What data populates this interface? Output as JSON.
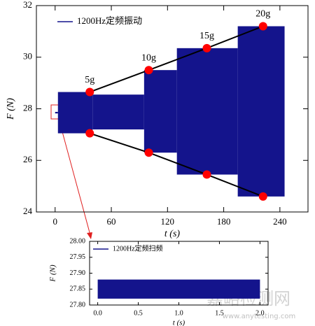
{
  "chart_data": [
    {
      "type": "band",
      "xlabel": "t (s)",
      "ylabel": "F (N)",
      "xlim": [
        -20,
        270
      ],
      "ylim": [
        24,
        32
      ],
      "xticks": [
        0,
        60,
        120,
        180,
        240
      ],
      "yticks": [
        24,
        26,
        28,
        30,
        32
      ],
      "series": [
        {
          "name": "1200Hz定频振动",
          "color": "#14148c",
          "x_start": [
            0,
            3,
            40,
            95,
            130,
            195
          ],
          "x_end": [
            3,
            40,
            95,
            130,
            195,
            245
          ],
          "low": [
            27.82,
            27.05,
            27.2,
            26.3,
            25.45,
            24.6
          ],
          "high": [
            27.88,
            28.65,
            28.55,
            29.5,
            30.35,
            31.2
          ]
        }
      ],
      "marker_color": "#ff0000",
      "line_color": "#000000",
      "envelope": [
        {
          "x": [
            37,
            100,
            162,
            222
          ],
          "values": [
            28.65,
            29.5,
            30.35,
            31.2
          ],
          "labels": [
            "5g",
            "10g",
            "15g",
            "20g"
          ]
        },
        {
          "x": [
            37,
            100,
            162,
            222
          ],
          "values": [
            27.05,
            26.3,
            25.45,
            24.6
          ]
        }
      ]
    },
    {
      "type": "band",
      "xlabel": "t (s)",
      "ylabel": "F (N)",
      "xlim": [
        -0.1,
        2.1
      ],
      "ylim": [
        27.8,
        28.0
      ],
      "xticks": [
        {
          "value": 0,
          "label": "0.0"
        },
        0.5,
        {
          "value": 1,
          "label": "1.0"
        },
        1.5,
        {
          "value": 2,
          "label": "2.0"
        }
      ],
      "yticks": [
        {
          "value": 27.8,
          "label": "27.80"
        },
        {
          "value": 27.85,
          "label": "27.85"
        },
        {
          "value": 27.9,
          "label": "27.90"
        },
        {
          "value": 27.95,
          "label": "27.95"
        },
        {
          "value": 28,
          "label": "28.00"
        }
      ],
      "series": [
        {
          "name": "1200Hz定频扫频",
          "color": "#14148c",
          "x_start": [
            0
          ],
          "x_end": [
            2
          ],
          "low": [
            27.82
          ],
          "high": [
            27.88
          ]
        }
      ]
    }
  ],
  "watermark": {
    "text": "嘉峪检测网",
    "url": "www.anytesting.com"
  }
}
